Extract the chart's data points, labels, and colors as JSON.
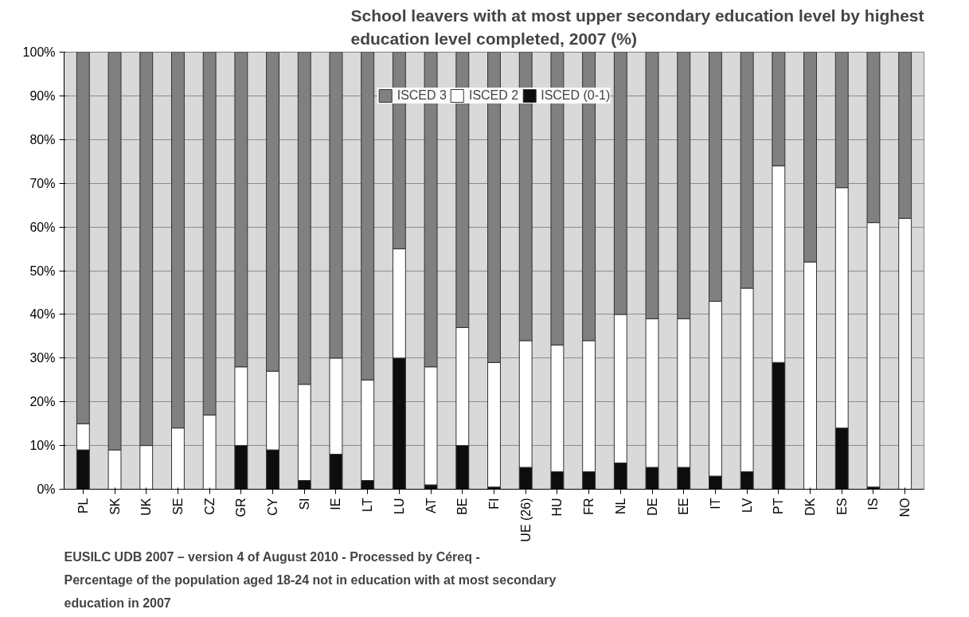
{
  "chart_data": {
    "type": "bar",
    "stacked": true,
    "title": "School leavers with at most upper secondary education level by highest education level completed, 2007 (%)",
    "categories": [
      "PL",
      "SK",
      "UK",
      "SE",
      "CZ",
      "GR",
      "CY",
      "SI",
      "IE",
      "LT",
      "LU",
      "AT",
      "BE",
      "FI",
      "UE (26)",
      "HU",
      "FR",
      "NL",
      "DE",
      "EE",
      "IT",
      "LV",
      "PT",
      "DK",
      "ES",
      "IS",
      "NO"
    ],
    "series": [
      {
        "name": "ISCED (0-1)",
        "color": "#0d0d0d",
        "values": [
          9,
          0,
          0,
          0,
          0,
          10,
          9,
          2,
          8,
          2,
          30,
          1,
          10,
          0.5,
          5,
          4,
          4,
          6,
          5,
          5,
          3,
          4,
          29,
          0,
          14,
          0.5,
          0
        ]
      },
      {
        "name": "ISCED 2",
        "color": "#ffffff",
        "values": [
          6,
          9,
          10,
          14,
          17,
          18,
          18,
          22,
          22,
          23,
          25,
          27,
          27,
          28.5,
          29,
          29,
          30,
          34,
          34,
          34,
          40,
          42,
          45,
          52,
          55,
          60.5,
          62
        ]
      },
      {
        "name": "ISCED 3",
        "color": "#808080",
        "values": [
          85,
          91,
          90,
          86,
          83,
          72,
          73,
          76,
          70,
          75,
          45,
          72,
          63,
          71,
          66,
          67,
          66,
          60,
          61,
          61,
          57,
          54,
          26,
          48,
          31,
          39,
          38
        ]
      }
    ],
    "ylim": [
      0,
      100
    ],
    "yticks": [
      {
        "value": 0,
        "label": "0%"
      },
      {
        "value": 10,
        "label": "10%"
      },
      {
        "value": 20,
        "label": "20%"
      },
      {
        "value": 30,
        "label": "30%"
      },
      {
        "value": 40,
        "label": "40%"
      },
      {
        "value": 50,
        "label": "50%"
      },
      {
        "value": 60,
        "label": "60%"
      },
      {
        "value": 70,
        "label": "70%"
      },
      {
        "value": 80,
        "label": "80%"
      },
      {
        "value": 90,
        "label": "90%"
      },
      {
        "value": 100,
        "label": "100%"
      }
    ],
    "grid": "y",
    "legend": "top",
    "annotations": [
      "EUSILC UDB 2007 – version 4 of August 2010 - Processed by Céreq -",
      "Percentage of the population aged 18-24 not in education with at most secondary education in 2007"
    ]
  }
}
